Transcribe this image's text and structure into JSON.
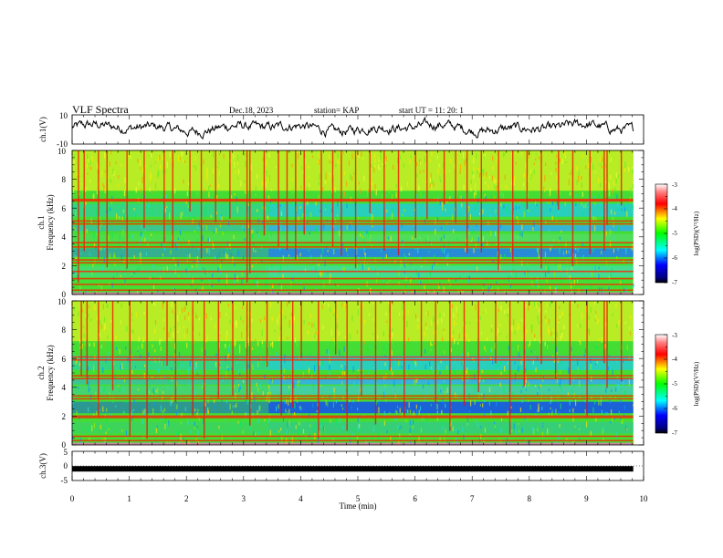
{
  "header": {
    "title": "VLF Spectra",
    "date": "Dec.18, 2023",
    "station": "station= KAP",
    "start": "start UT =  11: 20: 1"
  },
  "chart_data": [
    {
      "type": "line",
      "id": "ch1-waveform",
      "ylabel": "ch.1(V)",
      "ylim": [
        -10,
        10
      ],
      "y_ticklabels": [
        "10",
        "-10"
      ],
      "xlim": [
        0,
        10
      ],
      "x_data_end": 9.82,
      "series": [
        {
          "values_summary": "noisy waveform oscillating roughly between -4 and 6 V around 0",
          "color": "#000000"
        }
      ]
    },
    {
      "type": "heatmap",
      "id": "ch1-spectrogram",
      "ylabel_top": "ch.1",
      "ylabel_bottom": "Frequency (kHz)",
      "ylim": [
        0,
        10
      ],
      "y_ticklabels": [
        "0",
        "2",
        "4",
        "6",
        "8",
        "10"
      ],
      "xlim": [
        0,
        10
      ],
      "x_data_end": 9.82,
      "horizontal_lines_khz": [
        0.3,
        0.7,
        1.1,
        1.6,
        2.2,
        2.4,
        3.3,
        3.6,
        4.9,
        5.1,
        6.5,
        6.6
      ],
      "vertical_bursts_min": [
        0.1,
        0.2,
        0.45,
        0.6,
        0.95,
        1.25,
        1.6,
        1.75,
        2.05,
        2.25,
        2.5,
        2.75,
        3.05,
        3.1,
        3.35,
        3.6,
        3.75,
        3.9,
        4.05,
        4.35,
        4.55,
        4.7,
        4.95,
        5.2,
        5.45,
        5.7,
        6.0,
        6.2,
        6.5,
        6.7,
        6.9,
        7.15,
        7.45,
        7.7,
        7.95,
        8.2,
        8.5,
        8.75,
        9.05,
        9.3,
        9.35,
        9.6
      ],
      "colorbar": {
        "label": "log(PSD)(V²/Hz)",
        "ticks": [
          "-3",
          "-4",
          "-5",
          "-6",
          "-7"
        ],
        "range": [
          -7,
          -3
        ]
      }
    },
    {
      "type": "heatmap",
      "id": "ch2-spectrogram",
      "ylabel_top": "ch.2",
      "ylabel_bottom": "Frequency (kHz)",
      "ylim": [
        0,
        10
      ],
      "y_ticklabels": [
        "0",
        "2",
        "4",
        "6",
        "8",
        "10"
      ],
      "xlim": [
        0,
        10
      ],
      "x_data_end": 9.82,
      "horizontal_lines_khz": [
        0.3,
        0.6,
        1.9,
        2.0,
        3.2,
        3.4,
        4.6,
        4.8,
        5.9,
        6.1
      ],
      "vertical_bursts_min": [
        0.15,
        0.25,
        0.45,
        0.7,
        1.0,
        1.3,
        1.65,
        1.8,
        2.1,
        2.3,
        2.55,
        2.8,
        3.05,
        3.1,
        3.4,
        3.65,
        3.85,
        4.0,
        4.3,
        4.6,
        4.8,
        5.05,
        5.3,
        5.55,
        5.8,
        6.1,
        6.35,
        6.6,
        6.85,
        7.1,
        7.4,
        7.65,
        7.9,
        8.2,
        8.45,
        8.7,
        9.0,
        9.3,
        9.35,
        9.6
      ],
      "colorbar": {
        "label": "log(PSD)(V²/Hz)",
        "ticks": [
          "-3",
          "-4",
          "-5",
          "-6",
          "-7"
        ],
        "range": [
          -7,
          -3
        ]
      }
    },
    {
      "type": "line",
      "id": "ch3-waveform",
      "ylabel": "ch.3(V)",
      "ylim": [
        -5,
        5
      ],
      "y_ticklabels": [
        "5",
        "0",
        "-5"
      ],
      "xlim": [
        0,
        10
      ],
      "x_data_end": 9.82,
      "series": [
        {
          "values_summary": "flat thick band near -1 V",
          "level": -1,
          "color": "#000000"
        }
      ],
      "xlabel": "Time (min)",
      "x_ticklabels": [
        "0",
        "1",
        "2",
        "3",
        "4",
        "5",
        "6",
        "7",
        "8",
        "9",
        "10"
      ]
    }
  ],
  "colors": {
    "spec_low": "#0000ff",
    "spec_mid": "#00ff00",
    "spec_high": "#ff0000",
    "burst": "#ff0000"
  }
}
